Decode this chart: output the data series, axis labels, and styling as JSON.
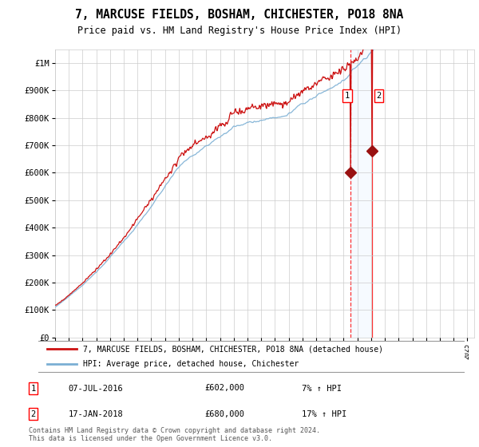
{
  "title": "7, MARCUSE FIELDS, BOSHAM, CHICHESTER, PO18 8NA",
  "subtitle": "Price paid vs. HM Land Registry's House Price Index (HPI)",
  "ylim": [
    0,
    1050000
  ],
  "xlim_start": 1995.0,
  "xlim_end": 2025.5,
  "sale1_x": 2016.52,
  "sale1_y": 602000,
  "sale2_x": 2018.05,
  "sale2_y": 680000,
  "legend_line1": "7, MARCUSE FIELDS, BOSHAM, CHICHESTER, PO18 8NA (detached house)",
  "legend_line2": "HPI: Average price, detached house, Chichester",
  "sale1_date": "07-JUL-2016",
  "sale1_price": "£602,000",
  "sale1_hpi": "7% ↑ HPI",
  "sale2_date": "17-JAN-2018",
  "sale2_price": "£680,000",
  "sale2_hpi": "17% ↑ HPI",
  "footer": "Contains HM Land Registry data © Crown copyright and database right 2024.\nThis data is licensed under the Open Government Licence v3.0.",
  "hpi_color": "#7bafd4",
  "price_color": "#cc1111",
  "sale_marker_color": "#991111",
  "shade_color": "#ddeeff",
  "grid_color": "#cccccc",
  "bg_color": "#ffffff"
}
